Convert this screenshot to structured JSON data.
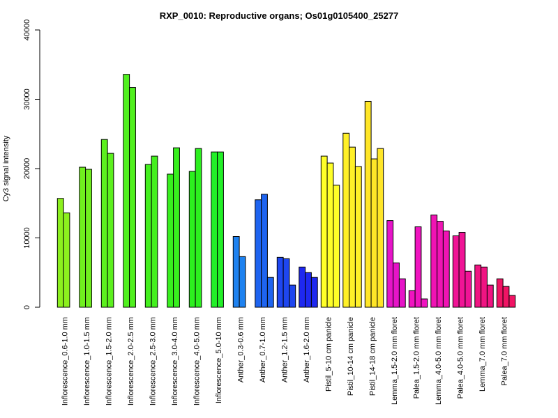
{
  "chart_data": {
    "type": "bar",
    "title": "RXP_0010: Reproductive organs; Os01g0105400_25277",
    "xlabel": "",
    "ylabel": "Cy3 signal intensity",
    "ylim": [
      0,
      40000
    ],
    "yticks": [
      0,
      10000,
      20000,
      30000,
      40000
    ],
    "ytick_labels": [
      "0",
      "10000",
      "20000",
      "30000",
      "40000"
    ],
    "grid": false,
    "legend": "none",
    "groups": [
      {
        "label": "Inflorescence_0.6-1.0 mm",
        "color": "#8CF01E",
        "values": [
          15700,
          13600
        ]
      },
      {
        "label": "Inflorescence_1.0-1.5 mm",
        "color": "#70F01E",
        "values": [
          20200,
          19900
        ]
      },
      {
        "label": "Inflorescence_1.5-2.0 mm",
        "color": "#5CF01E",
        "values": [
          24200,
          22200
        ]
      },
      {
        "label": "Inflorescence_2.0-2.5 mm",
        "color": "#50F01E",
        "values": [
          33600,
          31700
        ]
      },
      {
        "label": "Inflorescence_2.5-3.0 mm",
        "color": "#44F01E",
        "values": [
          20600,
          21800
        ]
      },
      {
        "label": "Inflorescence_3.0-4.0 mm",
        "color": "#38F01E",
        "values": [
          19200,
          23000
        ]
      },
      {
        "label": "Inflorescence_4.0-5.0 mm",
        "color": "#2CF01E",
        "values": [
          19600,
          22900
        ]
      },
      {
        "label": "Inflorescence_5.0-10 mm",
        "color": "#22F028",
        "values": [
          22400,
          22400
        ]
      },
      {
        "label": "Anther_0.3-0.6 mm",
        "color": "#1E82F0",
        "values": [
          10200,
          7300
        ]
      },
      {
        "label": "Anther_0.7-1.0 mm",
        "color": "#1E64F0",
        "values": [
          15500,
          16300,
          4300
        ]
      },
      {
        "label": "Anther_1.2-1.5 mm",
        "color": "#1E46F0",
        "values": [
          7200,
          7000,
          3200
        ]
      },
      {
        "label": "Anther_1.6-2.0 mm",
        "color": "#1E28F0",
        "values": [
          5800,
          5000,
          4300
        ]
      },
      {
        "label": "Pistil_5-10 cm panicle",
        "color": "#FFFF28",
        "values": [
          21800,
          20800,
          17600
        ]
      },
      {
        "label": "Pistil_10-14 cm panicle",
        "color": "#FFF028",
        "values": [
          25100,
          23100,
          20300
        ]
      },
      {
        "label": "Pistil_14-18 cm panicle",
        "color": "#FFE628",
        "values": [
          29700,
          21400,
          22900
        ]
      },
      {
        "label": "Lemma_1.5-2.0 mm floret",
        "color": "#E614C8",
        "values": [
          12500,
          6400,
          4100
        ]
      },
      {
        "label": "Palea_1.5-2.0 mm floret",
        "color": "#F014C0",
        "values": [
          2400,
          11600,
          1200
        ]
      },
      {
        "label": "Lemma_4.0-5.0 mm floret",
        "color": "#F014B4",
        "values": [
          13300,
          12400,
          11000
        ]
      },
      {
        "label": "Palea_4.0-5.0 mm floret",
        "color": "#F01496",
        "values": [
          10300,
          10800,
          5200
        ]
      },
      {
        "label": "Lemma_7.0 mm floret",
        "color": "#F01482",
        "values": [
          6100,
          5800,
          3200
        ]
      },
      {
        "label": "Palea_7.0 mm floret",
        "color": "#F01464",
        "values": [
          4100,
          3000,
          1700
        ]
      }
    ]
  }
}
